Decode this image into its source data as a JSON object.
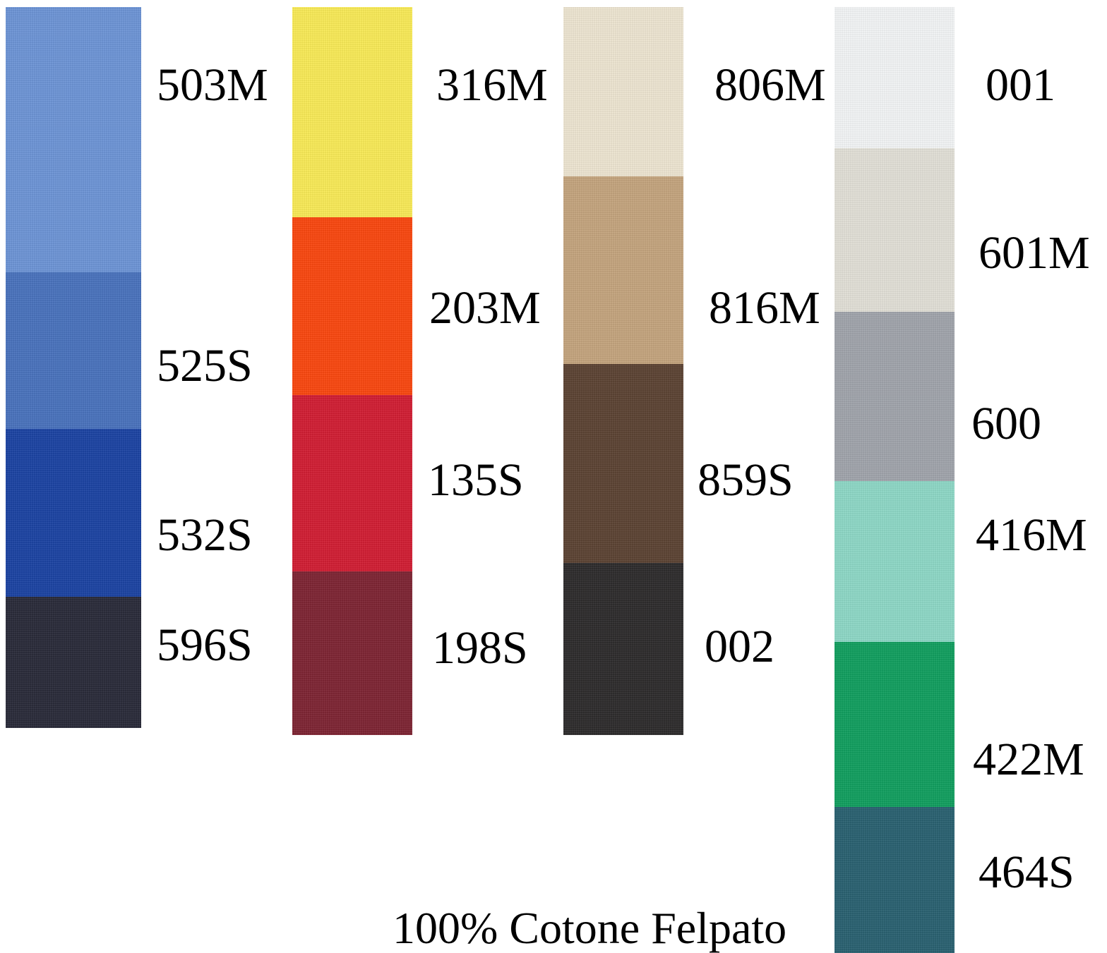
{
  "columns": [
    {
      "swatches": [
        {
          "code": "503M",
          "color": "#6e96d8"
        },
        {
          "code": "525S",
          "color": "#4a74bf"
        },
        {
          "code": "532S",
          "color": "#1c44a4"
        },
        {
          "code": "596S",
          "color": "#2a2b3a"
        }
      ]
    },
    {
      "swatches": [
        {
          "code": "316M",
          "color": "#fbec58"
        },
        {
          "code": "203M",
          "color": "#fc4810"
        },
        {
          "code": "135S",
          "color": "#d31e34"
        },
        {
          "code": "198S",
          "color": "#7f2534"
        }
      ]
    },
    {
      "swatches": [
        {
          "code": "806M",
          "color": "#efe7d3"
        },
        {
          "code": "816M",
          "color": "#c6a67f"
        },
        {
          "code": "859S",
          "color": "#5d4434"
        },
        {
          "code": "002",
          "color": "#2e2c2d"
        }
      ]
    },
    {
      "swatches": [
        {
          "code": "001",
          "color": "#f5f7f8"
        },
        {
          "code": "601M",
          "color": "#e4e2d9"
        },
        {
          "code": "600",
          "color": "#a2a6ad"
        },
        {
          "code": "416M",
          "color": "#8fdac8"
        },
        {
          "code": "422M",
          "color": "#12a060"
        },
        {
          "code": "464S",
          "color": "#2a6272"
        }
      ]
    }
  ],
  "footer": "100% Cotone Felpato"
}
